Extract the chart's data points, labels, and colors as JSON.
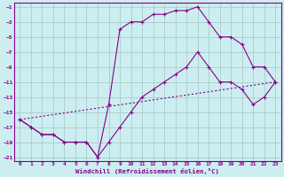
{
  "bg_color": "#cceef0",
  "grid_color": "#aacccc",
  "line_color": "#880088",
  "xlabel": "Windchill (Refroidissement éolien,°C)",
  "xlim": [
    -0.5,
    23.5
  ],
  "ylim": [
    -21.5,
    -0.5
  ],
  "yticks": [
    -1,
    -3,
    -5,
    -7,
    -9,
    -11,
    -13,
    -15,
    -17,
    -19,
    -21
  ],
  "xticks": [
    0,
    1,
    2,
    3,
    4,
    5,
    6,
    7,
    8,
    9,
    10,
    11,
    12,
    13,
    14,
    15,
    16,
    17,
    18,
    19,
    20,
    21,
    22,
    23
  ],
  "line1_x": [
    0,
    1,
    2,
    3,
    4,
    5,
    6,
    7,
    8,
    9,
    10,
    11,
    12,
    13,
    14,
    15,
    16,
    17,
    18,
    19,
    20,
    21,
    22,
    23
  ],
  "line1_y": [
    -16,
    -17,
    -18,
    -18,
    -19,
    -19,
    -19,
    -21,
    -14,
    -4,
    -3,
    -3,
    -2,
    -2,
    -1.5,
    -1.5,
    -1,
    -3,
    -5,
    -5,
    -6,
    -9,
    -9,
    -11
  ],
  "line2_x": [
    0,
    1,
    2,
    3,
    4,
    5,
    6,
    7,
    8,
    9,
    10,
    11,
    12,
    13,
    14,
    15,
    16,
    17,
    18,
    19,
    20,
    21,
    22,
    23
  ],
  "line2_y": [
    -16,
    -17,
    -18,
    -18,
    -19,
    -19,
    -19,
    -21,
    -19,
    -17,
    -15,
    -13,
    -12,
    -11,
    -10,
    -9,
    -7,
    -9,
    -11,
    -11,
    -12,
    -14,
    -13,
    -11
  ],
  "line3_x": [
    0,
    23
  ],
  "line3_y": [
    -16,
    -11
  ]
}
